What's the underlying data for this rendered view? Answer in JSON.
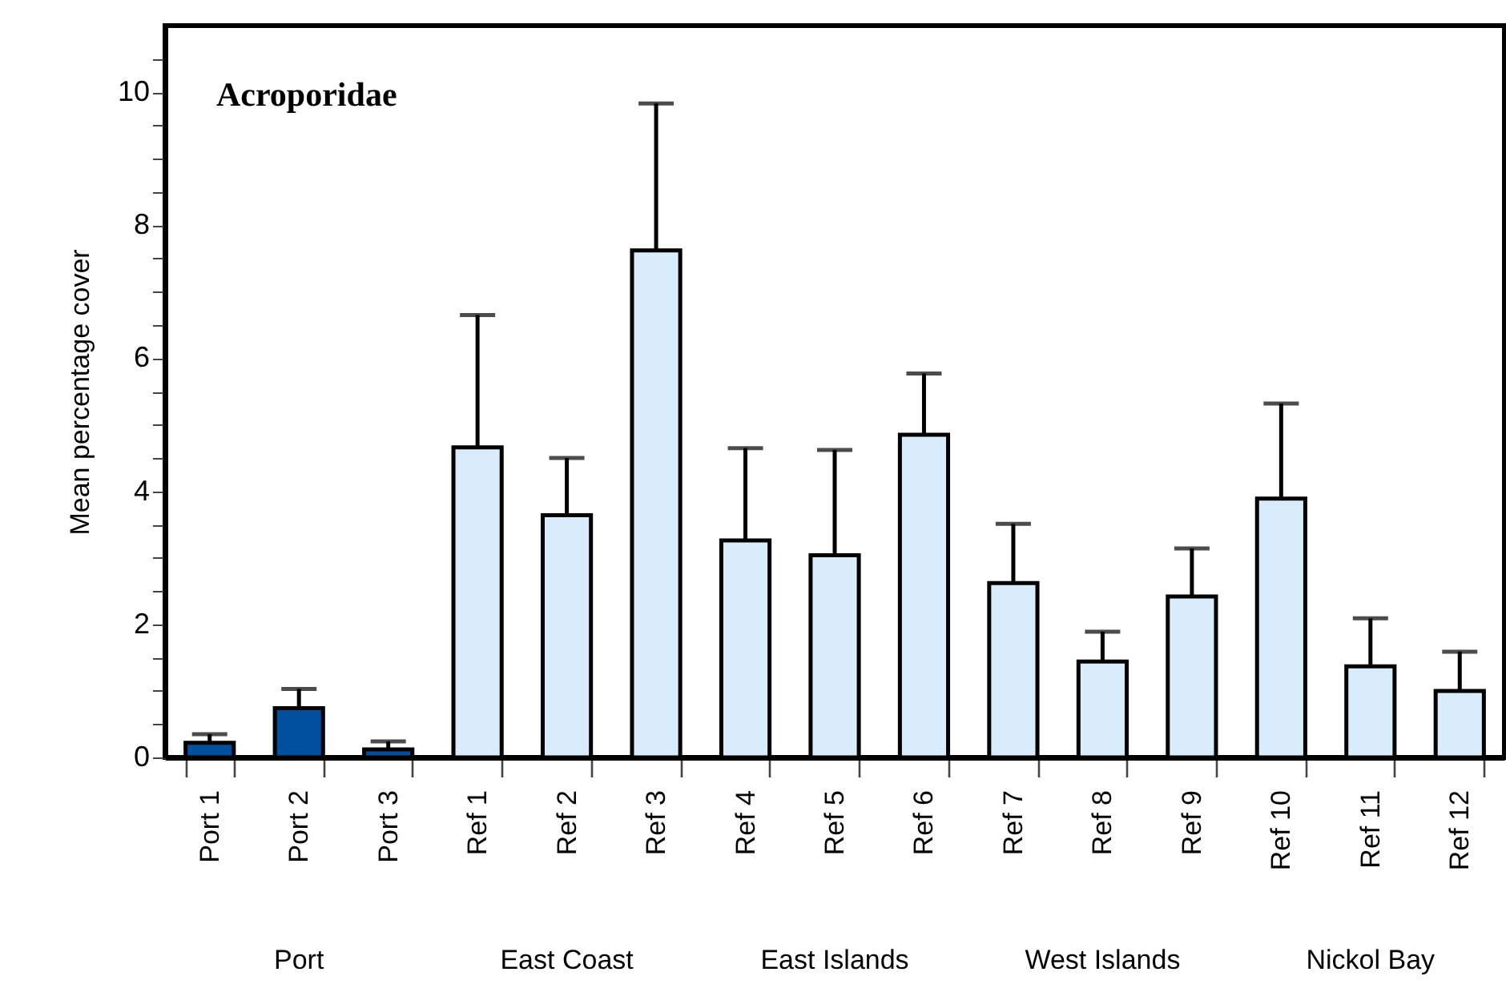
{
  "chart_data": {
    "type": "bar",
    "title": "Acroporidae",
    "ylabel": "Mean percentage cover",
    "categories": [
      "Port 1",
      "Port 2",
      "Port 3",
      "Ref 1",
      "Ref 2",
      "Ref 3",
      "Ref 4",
      "Ref 5",
      "Ref 6",
      "Ref 7",
      "Ref 8",
      "Ref 9",
      "Ref 10",
      "Ref 11",
      "Ref 12"
    ],
    "values": [
      0.22,
      0.74,
      0.12,
      4.66,
      3.64,
      7.62,
      3.26,
      3.04,
      4.85,
      2.62,
      1.44,
      2.42,
      3.89,
      1.37,
      1.0
    ],
    "errors": [
      [
        0.22,
        0.35
      ],
      [
        0.74,
        1.03
      ],
      [
        0.12,
        0.24
      ],
      [
        4.66,
        6.65
      ],
      [
        3.64,
        4.5
      ],
      [
        7.62,
        9.83
      ],
      [
        3.26,
        4.65
      ],
      [
        3.04,
        4.62
      ],
      [
        4.85,
        5.77
      ],
      [
        2.62,
        3.51
      ],
      [
        1.44,
        1.89
      ],
      [
        2.42,
        3.14
      ],
      [
        3.89,
        5.32
      ],
      [
        1.37,
        2.09
      ],
      [
        1.0,
        1.59
      ]
    ],
    "colors": [
      "#0050a0",
      "#0050a0",
      "#0050a0",
      "#d8ecfc",
      "#d8ecfc",
      "#d8ecfc",
      "#d8ecfc",
      "#d8ecfc",
      "#d8ecfc",
      "#d8ecfc",
      "#d8ecfc",
      "#d8ecfc",
      "#d8ecfc",
      "#d8ecfc",
      "#d8ecfc"
    ],
    "ylim": [
      0,
      11
    ],
    "yticks": [
      0,
      {
        "value": 0.5,
        "label": null
      },
      {
        "value": 1,
        "label": null
      },
      {
        "value": 1.5,
        "label": null
      },
      2,
      {
        "value": 2.5,
        "label": null
      },
      {
        "value": 3,
        "label": null
      },
      {
        "value": 3.5,
        "label": null
      },
      4,
      {
        "value": 4.5,
        "label": null
      },
      {
        "value": 5,
        "label": null
      },
      {
        "value": 5.5,
        "label": null
      },
      6,
      {
        "value": 6.5,
        "label": null
      },
      {
        "value": 7,
        "label": null
      },
      {
        "value": 7.5,
        "label": null
      },
      8,
      {
        "value": 8.5,
        "label": null
      },
      {
        "value": 9,
        "label": null
      },
      {
        "value": 9.5,
        "label": null
      },
      10,
      {
        "value": 10.5,
        "label": null
      }
    ],
    "annotations": [
      "Port",
      "East Coast",
      "East Islands",
      "West Islands",
      "Nickol Bay"
    ],
    "grid": false
  }
}
